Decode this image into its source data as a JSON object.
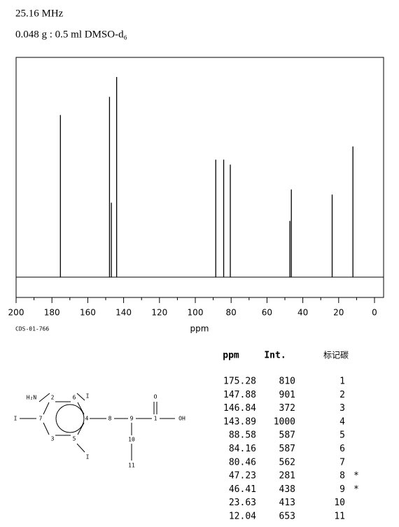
{
  "chart_data": {
    "type": "stick",
    "title": "25.16 MHz",
    "subtitle": "0.048 g : 0.5 ml DMSO-d₆",
    "xlabel": "ppm",
    "note": "CDS-01-766",
    "xlim": [
      200,
      0
    ],
    "xticks": [
      200,
      180,
      160,
      140,
      120,
      100,
      80,
      60,
      40,
      20,
      0
    ],
    "ylim": [
      0,
      1000
    ],
    "color": "#000000",
    "x": [
      175.28,
      147.88,
      146.84,
      143.89,
      88.58,
      84.16,
      80.46,
      47.23,
      46.41,
      23.63,
      12.04
    ],
    "values": [
      810,
      901,
      372,
      1000,
      587,
      587,
      562,
      281,
      438,
      413,
      653
    ]
  },
  "table": {
    "headers": [
      "ppm",
      "Int.",
      "标记碳"
    ],
    "assignments": [
      1,
      2,
      3,
      4,
      5,
      6,
      7,
      8,
      9,
      10,
      11
    ],
    "notes": [
      null,
      null,
      null,
      null,
      null,
      null,
      null,
      "*",
      "*",
      null,
      null
    ]
  },
  "structure": {
    "labels": [
      "H₂N",
      "I",
      "I",
      "I",
      "2",
      "6",
      "7",
      "4",
      "3",
      "5",
      "8",
      "9",
      "1",
      "O",
      "OH",
      "10",
      "11"
    ]
  }
}
